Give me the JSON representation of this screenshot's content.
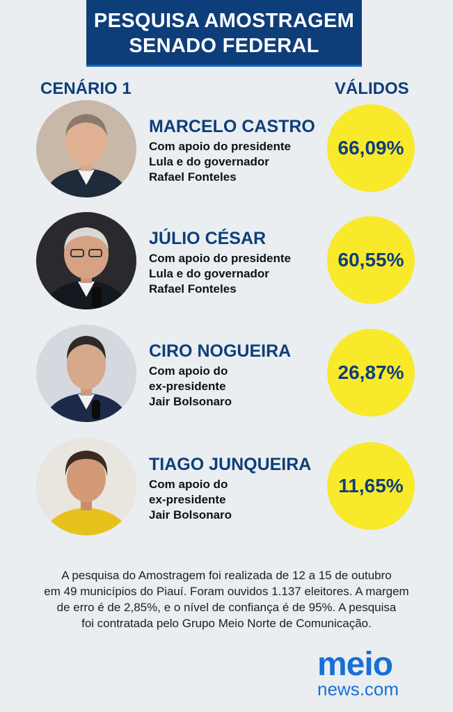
{
  "banner": {
    "line1": "PESQUISA AMOSTRAGEM",
    "line2": "SENADO FEDERAL"
  },
  "headers": {
    "scenario": "CENÁRIO 1",
    "valid": "VÁLIDOS"
  },
  "candidates": [
    {
      "name": "MARCELO CASTRO",
      "support": [
        "Com apoio do presidente",
        "Lula e do governador",
        "Rafael Fonteles"
      ],
      "percent": "66,09%",
      "photo_bg": "#c7b8a8",
      "suit": "#1f2a3a"
    },
    {
      "name": "JÚLIO CÉSAR",
      "support": [
        "Com apoio do presidente",
        "Lula e do governador",
        "Rafael Fonteles"
      ],
      "percent": "60,55%",
      "photo_bg": "#2a2a2e",
      "suit": "#14181f"
    },
    {
      "name": "CIRO NOGUEIRA",
      "support": [
        "Com apoio do",
        "ex-presidente",
        "Jair Bolsonaro"
      ],
      "percent": "26,87%",
      "photo_bg": "#d5d9df",
      "suit": "#1c2a4a"
    },
    {
      "name": "TIAGO JUNQUEIRA",
      "support": [
        "Com apoio do",
        "ex-presidente",
        "Jair Bolsonaro"
      ],
      "percent": "11,65%",
      "photo_bg": "#e9e6df",
      "suit": "#e8c21c"
    }
  ],
  "footnote": [
    "A pesquisa do Amostragem foi realizada de 12 a 15 de outubro",
    "em 49 municípios do Piauí. Foram ouvidos 1.137 eleitores. A margem",
    "de erro é de 2,85%, e o nível de confiança é de 95%. A pesquisa",
    "foi contratada pelo Grupo Meio Norte de Comunicação."
  ],
  "logo": {
    "word1": "meio",
    "word2": "news.com"
  },
  "colors": {
    "navy": "#0e3e7a",
    "yellow": "#f8e92b",
    "background": "#eaeef1",
    "logo_blue": "#1a6fd6"
  }
}
